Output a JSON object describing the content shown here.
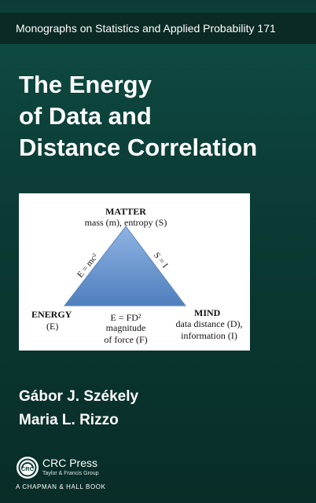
{
  "cover": {
    "series": "Monographs on Statistics and Applied Probability 171",
    "title_lines": [
      "The Energy",
      "of Data and",
      "Distance Correlation"
    ],
    "authors": [
      "Gábor J. Székely",
      "Maria L. Rizzo"
    ]
  },
  "diagram": {
    "matter_label": "MATTER",
    "matter_desc": "mass (m), entropy (S)",
    "energy_label": "ENERGY",
    "energy_desc": "(E)",
    "mind_label": "MIND",
    "mind_desc_1": "data distance (D),",
    "mind_desc_2": "information (I)",
    "left_edge": "E = mc²",
    "right_edge": "S = I",
    "bottom_1": "E = FD²",
    "bottom_2": "magnitude",
    "bottom_3": "of force (F)",
    "triangle_color_top": "#8fb4e4",
    "triangle_color_bottom": "#4f7fbd"
  },
  "publisher": {
    "logo_icon": "crc-logo-icon",
    "name": "CRC Press",
    "group": "Taylor & Francis Group",
    "imprint": "A CHAPMAN & HALL BOOK"
  },
  "colors": {
    "background": "#0a3b34",
    "series_bar": "#0b2a25",
    "text": "#ffffff"
  }
}
